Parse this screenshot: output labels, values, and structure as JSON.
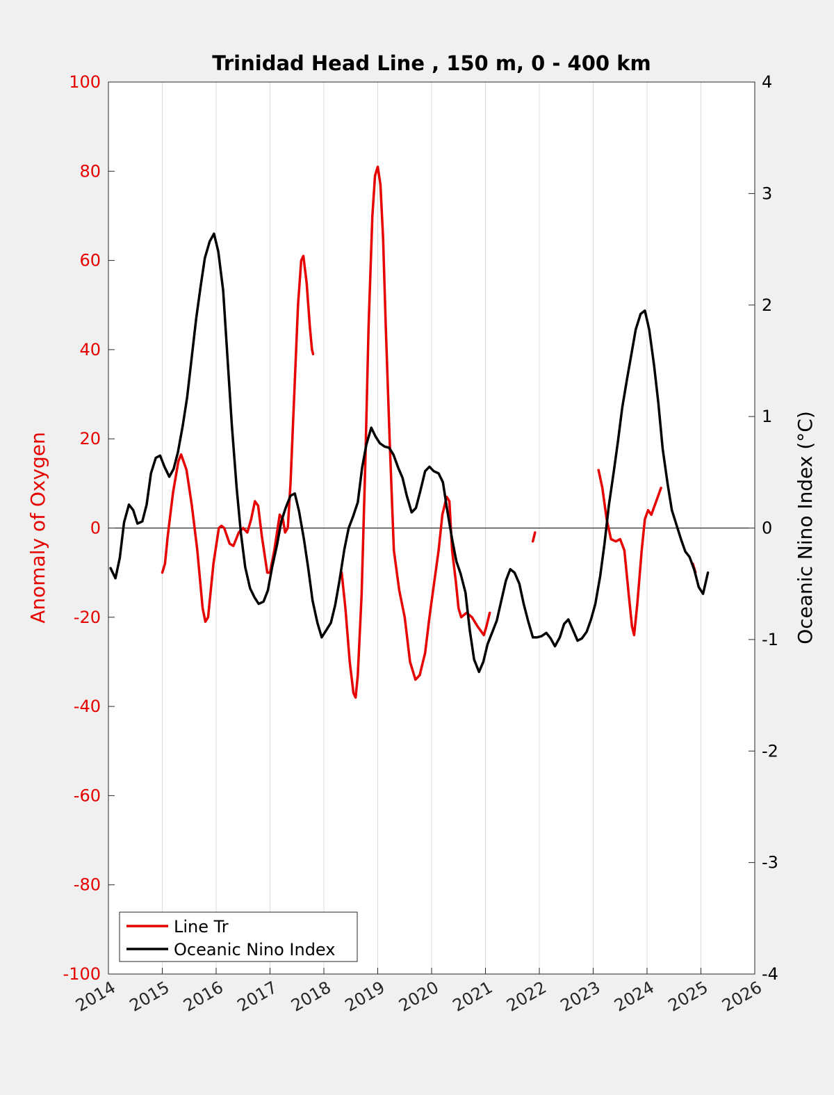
{
  "chart_data": {
    "type": "line",
    "title": "Trinidad Head Line , 150 m, 0 - 400 km",
    "ylabel_left": "Anomaly of Oxygen",
    "ylabel_right": "Oceanic Nino Index (°C)",
    "xlim": [
      2014,
      2026
    ],
    "ylim_left": [
      -100,
      100
    ],
    "ylim_right": [
      -4,
      4
    ],
    "x_ticks": [
      2014,
      2015,
      2016,
      2017,
      2018,
      2019,
      2020,
      2021,
      2022,
      2023,
      2024,
      2025,
      2026
    ],
    "y_ticks_left": [
      -100,
      -80,
      -60,
      -40,
      -20,
      0,
      20,
      40,
      60,
      80,
      100
    ],
    "y_ticks_right": [
      -4,
      -3,
      -2,
      -1,
      0,
      1,
      2,
      3,
      4
    ],
    "grid": "vertical",
    "zero_line": true,
    "legend_position": "bottom-left",
    "colors": {
      "line_tr": "#e60000",
      "oni": "#000000",
      "left_axis": "#e60000",
      "right_axis": "#000000"
    },
    "series": [
      {
        "name": "Line Tr",
        "axis": "left",
        "color": "#e60000",
        "segments": [
          [
            [
              2015.0,
              -10
            ],
            [
              2015.05,
              -8
            ],
            [
              2015.1,
              -2
            ],
            [
              2015.2,
              8
            ],
            [
              2015.3,
              15
            ],
            [
              2015.35,
              16.5
            ],
            [
              2015.45,
              13
            ],
            [
              2015.55,
              5
            ],
            [
              2015.65,
              -5
            ],
            [
              2015.75,
              -18
            ],
            [
              2015.8,
              -21
            ],
            [
              2015.85,
              -20
            ],
            [
              2015.95,
              -8
            ],
            [
              2016.05,
              0
            ],
            [
              2016.1,
              0.5
            ],
            [
              2016.15,
              0
            ],
            [
              2016.25,
              -3.5
            ],
            [
              2016.32,
              -4
            ],
            [
              2016.42,
              -1
            ],
            [
              2016.5,
              0
            ],
            [
              2016.58,
              -1
            ],
            [
              2016.65,
              2
            ],
            [
              2016.72,
              6
            ],
            [
              2016.78,
              5
            ],
            [
              2016.85,
              -2
            ],
            [
              2016.95,
              -10
            ],
            [
              2017.0,
              -10
            ],
            [
              2017.08,
              -5
            ],
            [
              2017.18,
              3
            ],
            [
              2017.24,
              2
            ],
            [
              2017.28,
              -1
            ],
            [
              2017.33,
              0
            ],
            [
              2017.38,
              10
            ],
            [
              2017.45,
              30
            ],
            [
              2017.52,
              50
            ],
            [
              2017.58,
              60
            ],
            [
              2017.62,
              61
            ],
            [
              2017.68,
              55
            ],
            [
              2017.74,
              45
            ],
            [
              2017.78,
              40
            ],
            [
              2017.8,
              39
            ]
          ],
          [
            [
              2018.33,
              -10
            ],
            [
              2018.4,
              -18
            ],
            [
              2018.48,
              -30
            ],
            [
              2018.55,
              -37
            ],
            [
              2018.59,
              -38
            ],
            [
              2018.63,
              -33
            ],
            [
              2018.7,
              -15
            ],
            [
              2018.77,
              15
            ],
            [
              2018.83,
              45
            ],
            [
              2018.9,
              70
            ],
            [
              2018.95,
              79
            ],
            [
              2019.0,
              81
            ],
            [
              2019.05,
              77
            ],
            [
              2019.1,
              65
            ],
            [
              2019.15,
              45
            ],
            [
              2019.22,
              20
            ],
            [
              2019.3,
              -5
            ],
            [
              2019.4,
              -14
            ],
            [
              2019.5,
              -20
            ],
            [
              2019.6,
              -30
            ],
            [
              2019.7,
              -34
            ],
            [
              2019.78,
              -33
            ],
            [
              2019.88,
              -28
            ],
            [
              2019.96,
              -20
            ],
            [
              2020.05,
              -12
            ],
            [
              2020.13,
              -5
            ],
            [
              2020.2,
              3
            ],
            [
              2020.28,
              7
            ],
            [
              2020.33,
              6
            ],
            [
              2020.38,
              -5
            ],
            [
              2020.45,
              -12
            ],
            [
              2020.5,
              -18
            ],
            [
              2020.55,
              -20
            ],
            [
              2020.65,
              -19
            ],
            [
              2020.75,
              -20
            ],
            [
              2020.85,
              -22
            ],
            [
              2020.97,
              -24
            ],
            [
              2021.02,
              -22
            ],
            [
              2021.08,
              -19
            ]
          ],
          [
            [
              2021.88,
              -3
            ],
            [
              2021.92,
              -1
            ]
          ],
          [
            [
              2023.1,
              13
            ],
            [
              2023.17,
              9
            ],
            [
              2023.25,
              2
            ],
            [
              2023.33,
              -2.5
            ],
            [
              2023.42,
              -3
            ],
            [
              2023.5,
              -2.5
            ],
            [
              2023.58,
              -5
            ],
            [
              2023.66,
              -15
            ],
            [
              2023.72,
              -22
            ],
            [
              2023.76,
              -24
            ],
            [
              2023.82,
              -17
            ],
            [
              2023.9,
              -5
            ],
            [
              2023.96,
              2
            ],
            [
              2024.02,
              4
            ],
            [
              2024.08,
              3
            ],
            [
              2024.17,
              6
            ],
            [
              2024.26,
              9
            ]
          ],
          [
            [
              2024.85,
              -8
            ],
            [
              2024.9,
              -10
            ]
          ]
        ]
      },
      {
        "name": "Oceanic Nino Index",
        "axis": "right",
        "color": "#000000",
        "points": [
          [
            2014.04,
            -0.36
          ],
          [
            2014.13,
            -0.45
          ],
          [
            2014.21,
            -0.27
          ],
          [
            2014.29,
            0.05
          ],
          [
            2014.38,
            0.21
          ],
          [
            2014.46,
            0.16
          ],
          [
            2014.54,
            0.04
          ],
          [
            2014.63,
            0.06
          ],
          [
            2014.71,
            0.21
          ],
          [
            2014.79,
            0.49
          ],
          [
            2014.88,
            0.63
          ],
          [
            2014.96,
            0.65
          ],
          [
            2015.04,
            0.55
          ],
          [
            2015.13,
            0.46
          ],
          [
            2015.21,
            0.53
          ],
          [
            2015.29,
            0.68
          ],
          [
            2015.38,
            0.92
          ],
          [
            2015.46,
            1.17
          ],
          [
            2015.54,
            1.5
          ],
          [
            2015.63,
            1.88
          ],
          [
            2015.71,
            2.16
          ],
          [
            2015.79,
            2.42
          ],
          [
            2015.88,
            2.57
          ],
          [
            2015.96,
            2.64
          ],
          [
            2016.04,
            2.48
          ],
          [
            2016.13,
            2.13
          ],
          [
            2016.21,
            1.53
          ],
          [
            2016.29,
            0.93
          ],
          [
            2016.38,
            0.36
          ],
          [
            2016.46,
            -0.05
          ],
          [
            2016.54,
            -0.35
          ],
          [
            2016.63,
            -0.54
          ],
          [
            2016.71,
            -0.62
          ],
          [
            2016.79,
            -0.68
          ],
          [
            2016.88,
            -0.66
          ],
          [
            2016.96,
            -0.56
          ],
          [
            2017.04,
            -0.35
          ],
          [
            2017.13,
            -0.15
          ],
          [
            2017.21,
            0.06
          ],
          [
            2017.29,
            0.18
          ],
          [
            2017.38,
            0.29
          ],
          [
            2017.46,
            0.31
          ],
          [
            2017.54,
            0.15
          ],
          [
            2017.63,
            -0.1
          ],
          [
            2017.71,
            -0.36
          ],
          [
            2017.79,
            -0.65
          ],
          [
            2017.88,
            -0.85
          ],
          [
            2017.96,
            -0.98
          ],
          [
            2018.04,
            -0.92
          ],
          [
            2018.13,
            -0.85
          ],
          [
            2018.21,
            -0.69
          ],
          [
            2018.29,
            -0.47
          ],
          [
            2018.38,
            -0.19
          ],
          [
            2018.46,
            0.0
          ],
          [
            2018.54,
            0.1
          ],
          [
            2018.63,
            0.23
          ],
          [
            2018.71,
            0.54
          ],
          [
            2018.79,
            0.75
          ],
          [
            2018.88,
            0.9
          ],
          [
            2018.96,
            0.82
          ],
          [
            2019.04,
            0.76
          ],
          [
            2019.13,
            0.73
          ],
          [
            2019.21,
            0.72
          ],
          [
            2019.29,
            0.66
          ],
          [
            2019.38,
            0.54
          ],
          [
            2019.46,
            0.45
          ],
          [
            2019.54,
            0.29
          ],
          [
            2019.63,
            0.14
          ],
          [
            2019.71,
            0.18
          ],
          [
            2019.79,
            0.33
          ],
          [
            2019.88,
            0.51
          ],
          [
            2019.96,
            0.55
          ],
          [
            2020.04,
            0.51
          ],
          [
            2020.13,
            0.49
          ],
          [
            2020.21,
            0.41
          ],
          [
            2020.29,
            0.16
          ],
          [
            2020.38,
            -0.1
          ],
          [
            2020.46,
            -0.3
          ],
          [
            2020.54,
            -0.41
          ],
          [
            2020.63,
            -0.58
          ],
          [
            2020.71,
            -0.92
          ],
          [
            2020.79,
            -1.18
          ],
          [
            2020.88,
            -1.29
          ],
          [
            2020.96,
            -1.2
          ],
          [
            2021.04,
            -1.04
          ],
          [
            2021.13,
            -0.93
          ],
          [
            2021.21,
            -0.83
          ],
          [
            2021.29,
            -0.66
          ],
          [
            2021.38,
            -0.47
          ],
          [
            2021.46,
            -0.37
          ],
          [
            2021.54,
            -0.4
          ],
          [
            2021.63,
            -0.5
          ],
          [
            2021.71,
            -0.68
          ],
          [
            2021.79,
            -0.83
          ],
          [
            2021.88,
            -0.98
          ],
          [
            2021.96,
            -0.98
          ],
          [
            2022.04,
            -0.97
          ],
          [
            2022.13,
            -0.94
          ],
          [
            2022.21,
            -0.99
          ],
          [
            2022.29,
            -1.06
          ],
          [
            2022.38,
            -0.98
          ],
          [
            2022.46,
            -0.86
          ],
          [
            2022.54,
            -0.82
          ],
          [
            2022.63,
            -0.92
          ],
          [
            2022.71,
            -1.01
          ],
          [
            2022.79,
            -0.99
          ],
          [
            2022.88,
            -0.93
          ],
          [
            2022.96,
            -0.82
          ],
          [
            2023.04,
            -0.68
          ],
          [
            2023.13,
            -0.43
          ],
          [
            2023.21,
            -0.14
          ],
          [
            2023.29,
            0.2
          ],
          [
            2023.38,
            0.5
          ],
          [
            2023.46,
            0.78
          ],
          [
            2023.54,
            1.08
          ],
          [
            2023.63,
            1.34
          ],
          [
            2023.71,
            1.56
          ],
          [
            2023.79,
            1.78
          ],
          [
            2023.88,
            1.92
          ],
          [
            2023.96,
            1.95
          ],
          [
            2024.04,
            1.78
          ],
          [
            2024.13,
            1.46
          ],
          [
            2024.21,
            1.12
          ],
          [
            2024.29,
            0.71
          ],
          [
            2024.38,
            0.4
          ],
          [
            2024.46,
            0.16
          ],
          [
            2024.54,
            0.04
          ],
          [
            2024.63,
            -0.1
          ],
          [
            2024.71,
            -0.21
          ],
          [
            2024.79,
            -0.26
          ],
          [
            2024.88,
            -0.38
          ],
          [
            2024.96,
            -0.53
          ],
          [
            2025.04,
            -0.59
          ],
          [
            2025.13,
            -0.4
          ]
        ]
      }
    ]
  }
}
